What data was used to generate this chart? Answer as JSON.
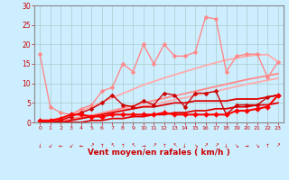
{
  "title": "",
  "xlabel": "Vent moyen/en rafales ( km/h )",
  "xlim": [
    -0.5,
    23.5
  ],
  "ylim": [
    0,
    30
  ],
  "yticks": [
    0,
    5,
    10,
    15,
    20,
    25,
    30
  ],
  "xticks": [
    0,
    1,
    2,
    3,
    4,
    5,
    6,
    7,
    8,
    9,
    10,
    11,
    12,
    13,
    14,
    15,
    16,
    17,
    18,
    19,
    20,
    21,
    22,
    23
  ],
  "bg_color": "#cceeff",
  "grid_color": "#aacccc",
  "lines": [
    {
      "comment": "smooth rising line 1 - light pink, no marker, lower slope",
      "x": [
        0,
        1,
        2,
        3,
        4,
        5,
        6,
        7,
        8,
        9,
        10,
        11,
        12,
        13,
        14,
        15,
        16,
        17,
        18,
        19,
        20,
        21,
        22,
        23
      ],
      "y": [
        0,
        0.3,
        0.6,
        1.0,
        1.4,
        1.8,
        2.2,
        2.7,
        3.2,
        3.7,
        4.2,
        4.7,
        5.2,
        5.8,
        6.3,
        6.9,
        7.5,
        8.0,
        8.6,
        9.2,
        9.8,
        10.3,
        10.8,
        11.3
      ],
      "color": "#ffaaaa",
      "lw": 1.3,
      "marker": null
    },
    {
      "comment": "smooth rising line 2 - light pink, no marker, upper slope",
      "x": [
        0,
        1,
        2,
        3,
        4,
        5,
        6,
        7,
        8,
        9,
        10,
        11,
        12,
        13,
        14,
        15,
        16,
        17,
        18,
        19,
        20,
        21,
        22,
        23
      ],
      "y": [
        0,
        0.5,
        1.2,
        2.0,
        3.0,
        4.0,
        5.2,
        6.3,
        7.4,
        8.5,
        9.6,
        10.5,
        11.4,
        12.2,
        13.0,
        13.8,
        14.6,
        15.3,
        16.0,
        16.5,
        17.0,
        17.3,
        17.4,
        15.5
      ],
      "color": "#ffaaaa",
      "lw": 1.3,
      "marker": null
    },
    {
      "comment": "smooth rising line 3 - medium pink, no marker",
      "x": [
        0,
        1,
        2,
        3,
        4,
        5,
        6,
        7,
        8,
        9,
        10,
        11,
        12,
        13,
        14,
        15,
        16,
        17,
        18,
        19,
        20,
        21,
        22,
        23
      ],
      "y": [
        0,
        0.2,
        0.5,
        0.8,
        1.3,
        1.8,
        2.4,
        3.0,
        3.7,
        4.3,
        5.0,
        5.6,
        6.2,
        6.8,
        7.4,
        8.0,
        8.6,
        9.2,
        9.8,
        10.4,
        11.0,
        11.5,
        12.0,
        12.5
      ],
      "color": "#ff8888",
      "lw": 1.3,
      "marker": null
    },
    {
      "comment": "wiggly line - light pink with diamond markers, high amplitude",
      "x": [
        0,
        1,
        2,
        3,
        4,
        5,
        6,
        7,
        8,
        9,
        10,
        11,
        12,
        13,
        14,
        15,
        16,
        17,
        18,
        19,
        20,
        21,
        22,
        23
      ],
      "y": [
        17.5,
        4.0,
        2.5,
        2.0,
        3.5,
        4.5,
        8.0,
        9.0,
        15.0,
        13.0,
        20.0,
        15.0,
        20.0,
        17.0,
        17.0,
        18.0,
        27.0,
        26.5,
        13.0,
        17.0,
        17.5,
        17.5,
        11.5,
        15.5
      ],
      "color": "#ff8888",
      "lw": 1.0,
      "marker": "D",
      "markersize": 2.5
    },
    {
      "comment": "red smooth rising - upper red line",
      "x": [
        0,
        1,
        2,
        3,
        4,
        5,
        6,
        7,
        8,
        9,
        10,
        11,
        12,
        13,
        14,
        15,
        16,
        17,
        18,
        19,
        20,
        21,
        22,
        23
      ],
      "y": [
        0,
        0,
        0,
        0.5,
        1.0,
        1.5,
        2.0,
        2.5,
        3.0,
        3.5,
        4.0,
        4.0,
        4.5,
        5.0,
        5.0,
        5.5,
        5.5,
        5.5,
        5.5,
        6.0,
        6.0,
        6.0,
        6.5,
        7.0
      ],
      "color": "#dd0000",
      "lw": 1.3,
      "marker": null
    },
    {
      "comment": "red smooth rising - lower red line",
      "x": [
        0,
        1,
        2,
        3,
        4,
        5,
        6,
        7,
        8,
        9,
        10,
        11,
        12,
        13,
        14,
        15,
        16,
        17,
        18,
        19,
        20,
        21,
        22,
        23
      ],
      "y": [
        0,
        0,
        0,
        0,
        0,
        0.5,
        0.5,
        1.0,
        1.0,
        1.5,
        1.5,
        2.0,
        2.0,
        2.5,
        2.5,
        3.0,
        3.0,
        3.5,
        3.5,
        4.0,
        4.0,
        4.5,
        4.5,
        5.0
      ],
      "color": "#dd0000",
      "lw": 1.3,
      "marker": null
    },
    {
      "comment": "red wiggly with diamond markers - medium amplitude",
      "x": [
        0,
        1,
        2,
        3,
        4,
        5,
        6,
        7,
        8,
        9,
        10,
        11,
        12,
        13,
        14,
        15,
        16,
        17,
        18,
        19,
        20,
        21,
        22,
        23
      ],
      "y": [
        0,
        0,
        0.5,
        1.5,
        2.5,
        3.5,
        5.0,
        7.0,
        4.5,
        4.0,
        5.5,
        4.5,
        7.5,
        7.0,
        4.0,
        7.5,
        7.5,
        8.0,
        2.0,
        4.5,
        4.5,
        4.5,
        6.5,
        7.0
      ],
      "color": "#cc0000",
      "lw": 1.0,
      "marker": "D",
      "markersize": 2.5
    },
    {
      "comment": "bright red nearly flat with markers",
      "x": [
        0,
        1,
        2,
        3,
        4,
        5,
        6,
        7,
        8,
        9,
        10,
        11,
        12,
        13,
        14,
        15,
        16,
        17,
        18,
        19,
        20,
        21,
        22,
        23
      ],
      "y": [
        0.5,
        0.5,
        1.0,
        2.0,
        2.0,
        1.5,
        1.5,
        2.0,
        2.0,
        2.0,
        2.0,
        2.0,
        2.5,
        2.0,
        2.0,
        2.0,
        2.0,
        2.0,
        2.0,
        3.0,
        3.0,
        3.5,
        4.0,
        7.0
      ],
      "color": "#ff0000",
      "lw": 1.5,
      "marker": "D",
      "markersize": 3.0
    }
  ],
  "xlabel_color": "#cc0000",
  "tick_color": "#cc0000",
  "axis_color": "#888888",
  "arrow_symbols": [
    "↓",
    "↙",
    "←",
    "↙",
    "←",
    "↗",
    "↑",
    "↖",
    "↑",
    "↖",
    "→",
    "↗",
    "↑",
    "↖",
    "↓",
    "↘",
    "↗",
    "↗",
    "↓",
    "↘",
    "→",
    "↘",
    "↑",
    "↗"
  ]
}
